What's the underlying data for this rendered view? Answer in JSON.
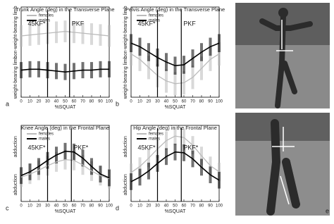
{
  "chart_data": [
    {
      "type": "line",
      "panel_label": "a",
      "title": "Trunk Angle (deg) in the Transverse Plane",
      "y_label_top": "non-weight-bearing limb",
      "y_label_bottom": "weight-bearing limb",
      "x_label": "%SQUAT",
      "x": [
        0,
        10,
        20,
        30,
        40,
        50,
        60,
        70,
        80,
        90,
        100
      ],
      "xlim": [
        0,
        100
      ],
      "xticks": [
        0,
        10,
        20,
        30,
        40,
        50,
        60,
        70,
        80,
        90,
        100
      ],
      "ylim": [
        0,
        10
      ],
      "legend": "top-left",
      "series": [
        {
          "name": "females",
          "color": "#bbbbbb",
          "values": [
            6.8,
            6.9,
            7.0,
            7.1,
            7.2,
            7.3,
            7.2,
            7.1,
            7.0,
            6.9,
            6.8
          ],
          "errors": [
            1.2,
            1.2,
            1.2,
            1.2,
            1.2,
            1.2,
            1.2,
            1.2,
            1.2,
            1.2,
            1.2
          ]
        },
        {
          "name": "males",
          "color": "#000000",
          "values": [
            3.0,
            3.1,
            3.1,
            3.0,
            2.9,
            2.8,
            2.9,
            3.0,
            3.0,
            3.1,
            3.1
          ],
          "errors": [
            0.9,
            0.9,
            0.9,
            0.9,
            0.9,
            0.9,
            0.9,
            0.9,
            0.9,
            0.9,
            0.9
          ]
        }
      ],
      "annotations": [
        {
          "x": 30,
          "label": "45KF*"
        },
        {
          "x": 55,
          "label": "PKF"
        }
      ]
    },
    {
      "type": "line",
      "panel_label": "b",
      "title": "Pelvis Angle (deg) in the Transverse Plane",
      "y_label_top": "non-weight-bearing limb",
      "y_label_bottom": "weight-bearing limb",
      "x_label": "%SQUAT",
      "x": [
        0,
        10,
        20,
        30,
        40,
        50,
        60,
        70,
        80,
        90,
        100
      ],
      "xlim": [
        0,
        100
      ],
      "xticks": [
        0,
        10,
        20,
        30,
        40,
        50,
        60,
        70,
        80,
        90,
        100
      ],
      "ylim": [
        0,
        10
      ],
      "legend": "top-left",
      "series": [
        {
          "name": "females",
          "color": "#bbbbbb",
          "values": [
            4.8,
            4.2,
            3.3,
            2.4,
            1.8,
            1.5,
            1.6,
            2.2,
            3.2,
            4.2,
            4.8
          ],
          "errors": [
            1.3,
            1.3,
            1.3,
            1.3,
            1.3,
            1.3,
            1.3,
            1.3,
            1.3,
            1.3,
            1.3
          ]
        },
        {
          "name": "males",
          "color": "#000000",
          "values": [
            6.0,
            5.6,
            5.0,
            4.4,
            3.9,
            3.5,
            3.6,
            4.3,
            5.0,
            5.6,
            6.0
          ],
          "errors": [
            1.0,
            1.0,
            1.0,
            1.0,
            1.0,
            1.0,
            1.0,
            1.0,
            1.0,
            1.0,
            1.0
          ]
        }
      ],
      "annotations": [
        {
          "x": 30,
          "label": "45KF*"
        },
        {
          "x": 57,
          "label": "PKF"
        }
      ]
    },
    {
      "type": "line",
      "panel_label": "c",
      "title": "Knee Angle (deg) in the Frontal Plane",
      "y_label_top": "adduction",
      "y_label_bottom": "abduction",
      "x_label": "%SQUAT",
      "x": [
        0,
        10,
        20,
        30,
        40,
        50,
        60,
        70,
        80,
        90,
        100
      ],
      "xlim": [
        0,
        100
      ],
      "xticks": [
        0,
        10,
        20,
        30,
        40,
        50,
        60,
        70,
        80,
        90,
        100
      ],
      "ylim": [
        0,
        10
      ],
      "legend": "top-left",
      "series": [
        {
          "name": "females",
          "color": "#bbbbbb",
          "values": [
            3.2,
            3.6,
            4.1,
            4.7,
            5.2,
            5.5,
            5.4,
            4.8,
            4.0,
            3.4,
            3.0
          ],
          "errors": [
            1.3,
            1.3,
            1.3,
            1.3,
            1.3,
            1.3,
            1.3,
            1.3,
            1.3,
            1.3,
            1.3
          ]
        },
        {
          "name": "males",
          "color": "#000000",
          "values": [
            3.4,
            3.9,
            4.6,
            5.4,
            6.1,
            6.6,
            6.5,
            5.7,
            4.6,
            3.6,
            3.1
          ],
          "errors": [
            1.1,
            1.1,
            1.1,
            1.1,
            1.1,
            1.1,
            1.1,
            1.1,
            1.1,
            1.1,
            1.1
          ]
        }
      ],
      "annotations": [
        {
          "x": 30,
          "label": "45KF*"
        },
        {
          "x": 57,
          "label": "PKF*"
        }
      ]
    },
    {
      "type": "line",
      "panel_label": "d",
      "title": "Hip Angle (deg) in the Frontal Plane",
      "y_label_top": "adduction",
      "y_label_bottom": "abduction",
      "x_label": "%SQUAT",
      "x": [
        0,
        10,
        20,
        30,
        40,
        50,
        60,
        70,
        80,
        90,
        100
      ],
      "xlim": [
        0,
        100
      ],
      "xticks": [
        0,
        10,
        20,
        30,
        40,
        50,
        60,
        70,
        80,
        90,
        100
      ],
      "ylim": [
        0,
        10
      ],
      "legend": "top-left",
      "series": [
        {
          "name": "females",
          "color": "#bbbbbb",
          "values": [
            3.8,
            4.6,
            5.7,
            6.9,
            8.0,
            8.6,
            8.4,
            7.4,
            6.0,
            4.7,
            3.9
          ],
          "errors": [
            1.2,
            1.2,
            1.2,
            1.2,
            1.2,
            1.2,
            1.2,
            1.2,
            1.2,
            1.2,
            1.2
          ]
        },
        {
          "name": "males",
          "color": "#000000",
          "values": [
            2.6,
            3.2,
            4.0,
            5.0,
            5.9,
            6.5,
            6.4,
            5.6,
            4.5,
            3.5,
            2.8
          ],
          "errors": [
            1.1,
            1.1,
            1.1,
            1.1,
            1.1,
            1.1,
            1.1,
            1.1,
            1.1,
            1.1,
            1.1
          ]
        }
      ],
      "annotations": [
        {
          "x": 30,
          "label": "45KF*"
        },
        {
          "x": 57,
          "label": "PKF*"
        }
      ]
    }
  ],
  "photo_panel": {
    "label": "e"
  }
}
